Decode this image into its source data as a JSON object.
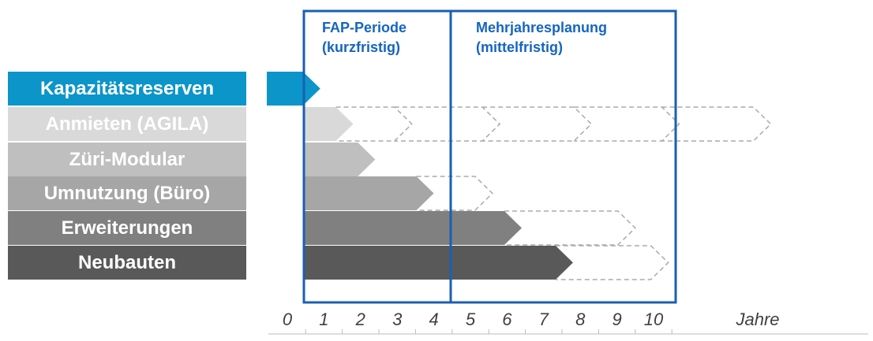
{
  "headers": [
    {
      "lines": [
        "FAP-Periode",
        "(kurzfristig)"
      ]
    },
    {
      "lines": [
        "Mehrjahresplanung",
        "(mittelfristig)"
      ]
    }
  ],
  "rows": [
    {
      "label": "Kapazitätsreserven",
      "color": "#0b95c9",
      "start": -0.56,
      "solid_end": 0.9,
      "dashed_ends": []
    },
    {
      "label": "Anmieten (AGILA)",
      "color": "#d9d9d9",
      "start": 0.45,
      "solid_end": 1.8,
      "dashed_ends": [
        3.4,
        5.8,
        8.3,
        10.7,
        13.2
      ]
    },
    {
      "label": "Züri-Modular",
      "color": "#bfbfbf",
      "start": 0.45,
      "solid_end": 2.4,
      "dashed_ends": []
    },
    {
      "label": "Umnutzung (Büro)",
      "color": "#a6a6a6",
      "start": 0.45,
      "solid_end": 4.0,
      "dashed_ends": [
        5.6
      ]
    },
    {
      "label": "Erweiterungen",
      "color": "#808080",
      "start": 0.45,
      "solid_end": 6.4,
      "dashed_ends": [
        9.5
      ]
    },
    {
      "label": "Neubauten",
      "color": "#595959",
      "start": 0.45,
      "solid_end": 7.8,
      "dashed_ends": [
        10.4
      ]
    }
  ],
  "axis": {
    "ticks": [
      0,
      1,
      2,
      3,
      4,
      5,
      6,
      7,
      8,
      9,
      10
    ],
    "unit": "Jahre"
  }
}
